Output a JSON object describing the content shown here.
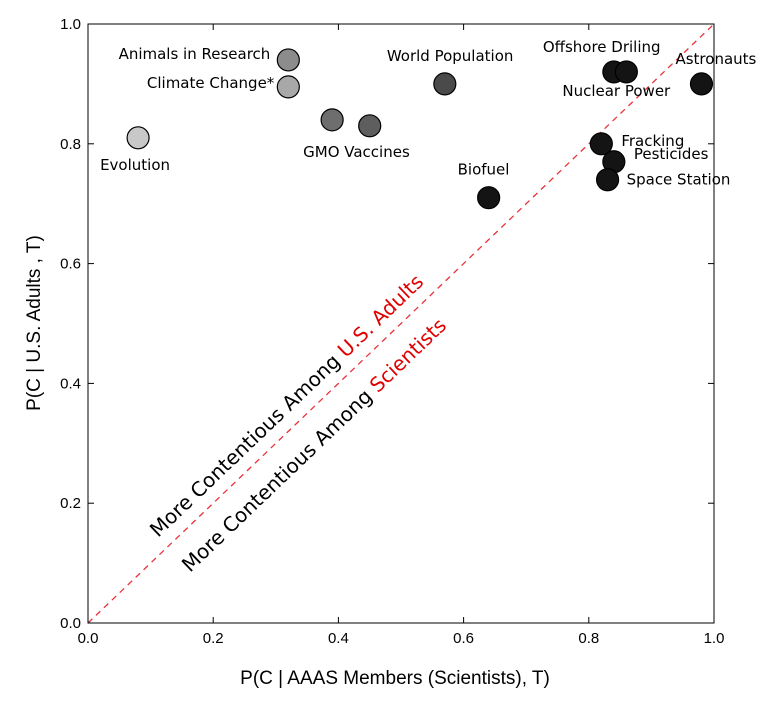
{
  "chart_data": {
    "type": "scatter",
    "title": "",
    "xlabel": "P(C | AAAS Members (Scientists), T)",
    "ylabel": "P(C | U.S. Adults , T)",
    "xlim": [
      0.0,
      1.0
    ],
    "ylim": [
      0.0,
      1.0
    ],
    "xticks": [
      "0.0",
      "0.2",
      "0.4",
      "0.6",
      "0.8",
      "1.0"
    ],
    "yticks": [
      "0.0",
      "0.2",
      "0.4",
      "0.6",
      "0.8",
      "1.0"
    ],
    "grid": false,
    "reference_line": {
      "type": "y=x",
      "style": "dashed",
      "color": "#e8333a"
    },
    "points": [
      {
        "label": "Evolution",
        "x": 0.08,
        "y": 0.81,
        "color": "#c8c8c8"
      },
      {
        "label": "Animals in Research",
        "x": 0.32,
        "y": 0.94,
        "color": "#8c8c8c"
      },
      {
        "label": "Climate Change*",
        "x": 0.32,
        "y": 0.895,
        "color": "#a8a8a8"
      },
      {
        "label": "GMO Vaccines",
        "x": 0.39,
        "y": 0.84,
        "color": "#6e6e6e"
      },
      {
        "label": "",
        "x": 0.45,
        "y": 0.83,
        "color": "#5e5e5e"
      },
      {
        "label": "World Population",
        "x": 0.57,
        "y": 0.9,
        "color": "#4a4a4a"
      },
      {
        "label": "Biofuel",
        "x": 0.64,
        "y": 0.71,
        "color": "#141414"
      },
      {
        "label": "Offshore Driling",
        "x": 0.84,
        "y": 0.92,
        "color": "#141414"
      },
      {
        "label": "Nuclear Power",
        "x": 0.86,
        "y": 0.92,
        "color": "#141414"
      },
      {
        "label": "Fracking",
        "x": 0.82,
        "y": 0.8,
        "color": "#141414"
      },
      {
        "label": "Pesticides",
        "x": 0.84,
        "y": 0.77,
        "color": "#141414"
      },
      {
        "label": "Space Station",
        "x": 0.83,
        "y": 0.74,
        "color": "#141414"
      },
      {
        "label": "Astronauts",
        "x": 0.98,
        "y": 0.9,
        "color": "#141414"
      }
    ],
    "annotations": [
      {
        "prefix": "More Contentious Among ",
        "highlight": "U.S. Adults",
        "highlight_color": "#e00000"
      },
      {
        "prefix": "More Contentious Among ",
        "highlight": "Scientists",
        "highlight_color": "#e00000"
      }
    ]
  }
}
